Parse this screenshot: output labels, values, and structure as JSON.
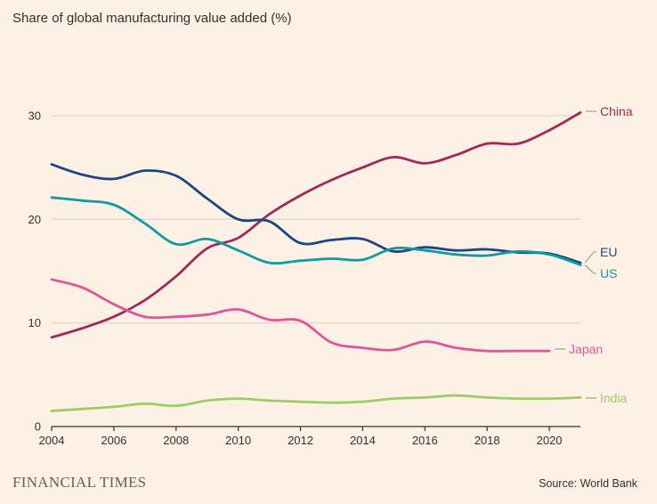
{
  "chart_data": {
    "type": "line",
    "title": "Share of global manufacturing value added (%)",
    "xlabel": "",
    "ylabel": "",
    "xlim": [
      2004,
      2021
    ],
    "ylim": [
      0,
      33
    ],
    "x_ticks": [
      "2004",
      "2006",
      "2008",
      "2010",
      "2012",
      "2014",
      "2016",
      "2018",
      "2020"
    ],
    "y_ticks": [
      "0",
      "10",
      "20",
      "30"
    ],
    "grid": "horizontal",
    "legend": "direct labels at right end of lines",
    "series": [
      {
        "name": "China",
        "color": "#a2285a",
        "x": [
          2004,
          2005,
          2006,
          2007,
          2008,
          2009,
          2010,
          2011,
          2012,
          2013,
          2014,
          2015,
          2016,
          2017,
          2018,
          2019,
          2020,
          2021
        ],
        "values": [
          8.6,
          9.5,
          10.6,
          12.2,
          14.5,
          17.2,
          18.2,
          20.5,
          22.3,
          23.8,
          25.0,
          26.0,
          25.4,
          26.2,
          27.3,
          27.3,
          28.6,
          30.3
        ]
      },
      {
        "name": "EU",
        "color": "#1b4683",
        "x": [
          2004,
          2005,
          2006,
          2007,
          2008,
          2009,
          2010,
          2011,
          2012,
          2013,
          2014,
          2015,
          2016,
          2017,
          2018,
          2019,
          2020,
          2021
        ],
        "values": [
          25.3,
          24.3,
          23.9,
          24.7,
          24.2,
          22.0,
          20.0,
          19.8,
          17.7,
          18.0,
          18.1,
          16.9,
          17.3,
          17.0,
          17.1,
          16.8,
          16.7,
          15.8
        ]
      },
      {
        "name": "US",
        "color": "#0d9ca3",
        "x": [
          2004,
          2005,
          2006,
          2007,
          2008,
          2009,
          2010,
          2011,
          2012,
          2013,
          2014,
          2015,
          2016,
          2017,
          2018,
          2019,
          2020,
          2021
        ],
        "values": [
          22.1,
          21.8,
          21.4,
          19.6,
          17.6,
          18.1,
          17.0,
          15.8,
          16.0,
          16.2,
          16.1,
          17.2,
          17.0,
          16.6,
          16.5,
          16.9,
          16.6,
          15.6
        ]
      },
      {
        "name": "Japan",
        "color": "#e0559a",
        "x": [
          2004,
          2005,
          2006,
          2007,
          2008,
          2009,
          2010,
          2011,
          2012,
          2013,
          2014,
          2015,
          2016,
          2017,
          2018,
          2019,
          2020
        ],
        "values": [
          14.2,
          13.4,
          11.8,
          10.6,
          10.6,
          10.8,
          11.3,
          10.3,
          10.2,
          8.1,
          7.6,
          7.4,
          8.2,
          7.6,
          7.3,
          7.3,
          7.3
        ]
      },
      {
        "name": "India",
        "color": "#9ccc65",
        "x": [
          2004,
          2005,
          2006,
          2007,
          2008,
          2009,
          2010,
          2011,
          2012,
          2013,
          2014,
          2015,
          2016,
          2017,
          2018,
          2019,
          2020,
          2021
        ],
        "values": [
          1.5,
          1.7,
          1.9,
          2.2,
          2.0,
          2.5,
          2.7,
          2.5,
          2.4,
          2.3,
          2.4,
          2.7,
          2.8,
          3.0,
          2.8,
          2.7,
          2.7,
          2.8
        ]
      }
    ]
  },
  "footer": {
    "brand": "FINANCIAL TIMES",
    "source": "Source: World Bank"
  }
}
